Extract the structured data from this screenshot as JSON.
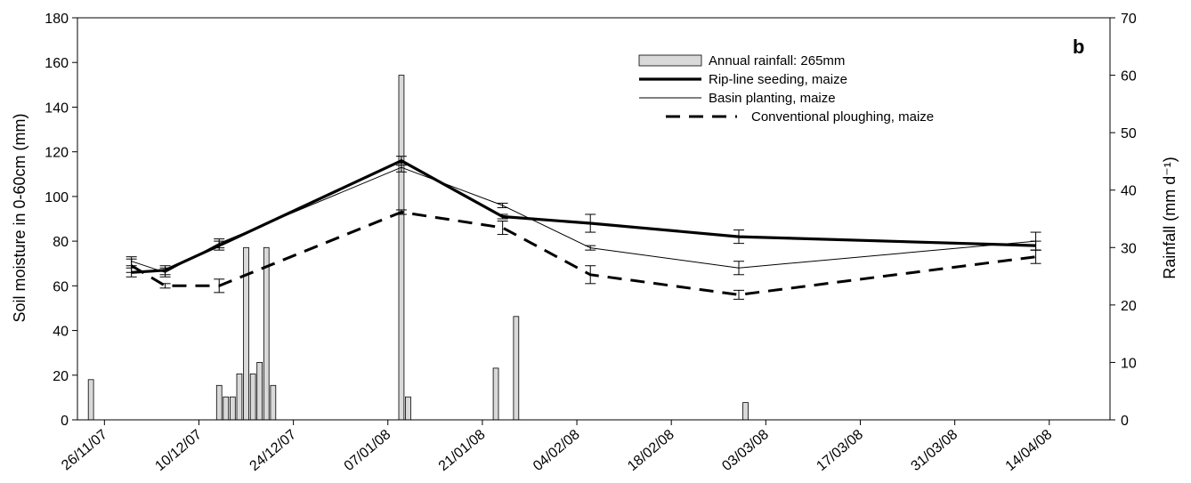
{
  "chart_data": {
    "type": "line",
    "panel_label": "b",
    "ylabel": "Soil moisture in 0-60cm (mm)",
    "y2label": "Rainfall (mm d⁻¹)",
    "ylim": [
      0,
      180
    ],
    "y2lim": [
      0,
      70
    ],
    "yticks": [
      0,
      20,
      40,
      60,
      80,
      100,
      120,
      140,
      160,
      180
    ],
    "y2ticks": [
      0,
      10,
      20,
      30,
      40,
      50,
      60,
      70
    ],
    "xlim": [
      "2007-11-22",
      "2008-04-23"
    ],
    "xticks": [
      {
        "date": "2007-11-26",
        "label": "26/11/07"
      },
      {
        "date": "2007-12-10",
        "label": "10/12/07"
      },
      {
        "date": "2007-12-24",
        "label": "24/12/07"
      },
      {
        "date": "2008-01-07",
        "label": "07/01/08"
      },
      {
        "date": "2008-01-21",
        "label": "21/01/08"
      },
      {
        "date": "2008-02-04",
        "label": "04/02/08"
      },
      {
        "date": "2008-02-18",
        "label": "18/02/08"
      },
      {
        "date": "2008-03-03",
        "label": "03/03/08"
      },
      {
        "date": "2008-03-17",
        "label": "17/03/08"
      },
      {
        "date": "2008-03-31",
        "label": "31/03/08"
      },
      {
        "date": "2008-04-14",
        "label": "14/04/08"
      }
    ],
    "legend": {
      "placement": "top-right",
      "entries": [
        {
          "label": "Annual rainfall: 265mm",
          "kind": "bar"
        },
        {
          "label": "Rip-line seeding, maize",
          "kind": "thick-line"
        },
        {
          "label": "Basin planting, maize",
          "kind": "thin-line"
        },
        {
          "label": "Conventional ploughing, maize",
          "kind": "dashed-line"
        }
      ]
    },
    "rainfall": {
      "name": "Annual rainfall: 265mm",
      "axis": "right",
      "dates": [
        "2007-11-24",
        "2007-12-13",
        "2007-12-14",
        "2007-12-15",
        "2007-12-16",
        "2007-12-17",
        "2007-12-18",
        "2007-12-19",
        "2007-12-20",
        "2007-12-21",
        "2008-01-09",
        "2008-01-10",
        "2008-01-23",
        "2008-01-26",
        "2008-02-29"
      ],
      "values": [
        7,
        6,
        4,
        4,
        8,
        30,
        8,
        10,
        30,
        6,
        60,
        4,
        9,
        18,
        3
      ]
    },
    "series": [
      {
        "name": "Rip-line seeding, maize",
        "style": "thick",
        "dates": [
          "2007-11-30",
          "2007-12-05",
          "2007-12-13",
          "2008-01-09",
          "2008-01-24",
          "2008-02-06",
          "2008-02-28",
          "2008-04-12"
        ],
        "values": [
          66,
          67,
          78,
          116,
          91,
          88,
          82,
          78
        ],
        "errors": [
          2,
          2,
          2,
          2,
          1,
          4,
          3,
          2
        ]
      },
      {
        "name": "Basin planting, maize",
        "style": "thin",
        "dates": [
          "2007-11-30",
          "2007-12-05",
          "2007-12-13",
          "2008-01-09",
          "2008-01-24",
          "2008-02-06",
          "2008-02-28",
          "2008-04-12"
        ],
        "values": [
          71,
          66,
          79,
          113,
          96,
          77,
          68,
          80
        ],
        "errors": [
          2,
          2,
          2,
          2,
          1,
          1,
          3,
          4
        ]
      },
      {
        "name": "Conventional ploughing, maize",
        "style": "dashed",
        "dates": [
          "2007-11-30",
          "2007-12-05",
          "2007-12-13",
          "2008-01-09",
          "2008-01-24",
          "2008-02-06",
          "2008-02-28",
          "2008-04-12"
        ],
        "values": [
          69,
          60,
          60,
          93,
          86,
          65,
          56,
          73
        ],
        "errors": [
          3,
          1,
          3,
          1,
          3,
          4,
          2,
          3
        ]
      }
    ]
  }
}
